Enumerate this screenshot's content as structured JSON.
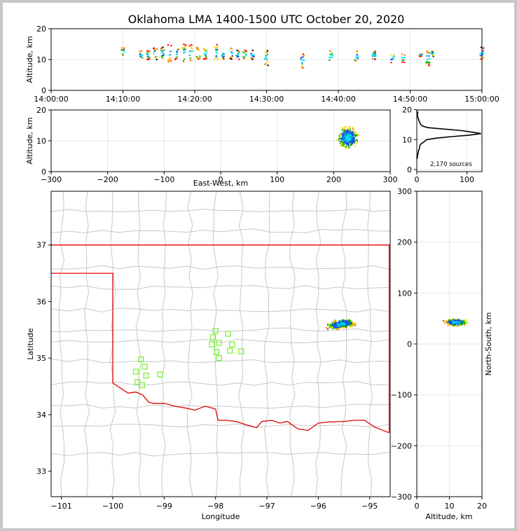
{
  "chart_data": [
    {
      "id": "time_height",
      "type": "scatter",
      "title": "Oklahoma LMA 1400-1500 UTC October 20, 2020",
      "xlabel": "",
      "ylabel": "Altitude, km",
      "xlim": [
        "14:00:00",
        "15:00:00"
      ],
      "ylim": [
        0,
        20
      ],
      "x_ticks": [
        "14:00:00",
        "14:10:00",
        "14:20:00",
        "14:30:00",
        "14:40:00",
        "14:50:00",
        "15:00:00"
      ],
      "y_ticks": [
        0,
        10,
        20
      ],
      "grid": true,
      "source_clusters": [
        {
          "time": "14:10:00",
          "alt_low": 11,
          "alt_high": 14
        },
        {
          "time": "14:12:30",
          "alt_low": 10,
          "alt_high": 13
        },
        {
          "time": "14:13:30",
          "alt_low": 10,
          "alt_high": 13
        },
        {
          "time": "14:14:30",
          "alt_low": 10,
          "alt_high": 14
        },
        {
          "time": "14:15:30",
          "alt_low": 10,
          "alt_high": 14
        },
        {
          "time": "14:16:30",
          "alt_low": 9,
          "alt_high": 15
        },
        {
          "time": "14:17:30",
          "alt_low": 10,
          "alt_high": 14
        },
        {
          "time": "14:18:30",
          "alt_low": 9,
          "alt_high": 15
        },
        {
          "time": "14:19:30",
          "alt_low": 9,
          "alt_high": 15
        },
        {
          "time": "14:20:30",
          "alt_low": 10,
          "alt_high": 14
        },
        {
          "time": "14:21:30",
          "alt_low": 10,
          "alt_high": 14
        },
        {
          "time": "14:23:00",
          "alt_low": 9,
          "alt_high": 15
        },
        {
          "time": "14:24:00",
          "alt_low": 10,
          "alt_high": 13
        },
        {
          "time": "14:25:00",
          "alt_low": 10,
          "alt_high": 14
        },
        {
          "time": "14:26:00",
          "alt_low": 10,
          "alt_high": 13
        },
        {
          "time": "14:27:00",
          "alt_low": 10,
          "alt_high": 13
        },
        {
          "time": "14:28:00",
          "alt_low": 10,
          "alt_high": 13
        },
        {
          "time": "14:30:00",
          "alt_low": 8,
          "alt_high": 13
        },
        {
          "time": "14:35:00",
          "alt_low": 7,
          "alt_high": 12
        },
        {
          "time": "14:39:00",
          "alt_low": 9,
          "alt_high": 13
        },
        {
          "time": "14:42:30",
          "alt_low": 9,
          "alt_high": 13
        },
        {
          "time": "14:45:00",
          "alt_low": 10,
          "alt_high": 13
        },
        {
          "time": "14:47:30",
          "alt_low": 9,
          "alt_high": 12
        },
        {
          "time": "14:49:00",
          "alt_low": 9,
          "alt_high": 12
        },
        {
          "time": "14:51:30",
          "alt_low": 11,
          "alt_high": 12
        },
        {
          "time": "14:52:30",
          "alt_low": 8,
          "alt_high": 13
        },
        {
          "time": "14:53:00",
          "alt_low": 11,
          "alt_high": 13
        },
        {
          "time": "15:00:00",
          "alt_low": 10,
          "alt_high": 14
        }
      ]
    },
    {
      "id": "ew_altitude",
      "type": "scatter",
      "xlabel": "East-West, km",
      "ylabel": "Altitude, km",
      "xlim": [
        -300,
        300
      ],
      "ylim": [
        0,
        20
      ],
      "x_ticks": [
        -300,
        -200,
        -100,
        0,
        100,
        200,
        300
      ],
      "y_ticks": [
        0,
        10,
        20
      ],
      "grid": true,
      "source_region": {
        "x_center": 225,
        "x_spread": 18,
        "alt_center": 11,
        "alt_spread": 3
      }
    },
    {
      "id": "altitude_histogram",
      "type": "line",
      "xlim": [
        0,
        130
      ],
      "ylim": [
        0,
        20
      ],
      "x_ticks": [
        0,
        100
      ],
      "y_ticks": [
        0,
        10,
        20
      ],
      "grid": true,
      "annotation": "2,170 sources",
      "profile": [
        {
          "count": 0,
          "alt": 19.5
        },
        {
          "count": 2,
          "alt": 19
        },
        {
          "count": 1,
          "alt": 18
        },
        {
          "count": 3,
          "alt": 17
        },
        {
          "count": 5,
          "alt": 16
        },
        {
          "count": 8,
          "alt": 15
        },
        {
          "count": 12,
          "alt": 14.5
        },
        {
          "count": 22,
          "alt": 14
        },
        {
          "count": 55,
          "alt": 13.5
        },
        {
          "count": 90,
          "alt": 13
        },
        {
          "count": 110,
          "alt": 12.5
        },
        {
          "count": 128,
          "alt": 12
        },
        {
          "count": 105,
          "alt": 11.5
        },
        {
          "count": 70,
          "alt": 11
        },
        {
          "count": 40,
          "alt": 10.5
        },
        {
          "count": 20,
          "alt": 10
        },
        {
          "count": 12,
          "alt": 9
        },
        {
          "count": 8,
          "alt": 8.5
        },
        {
          "count": 6,
          "alt": 8
        },
        {
          "count": 5,
          "alt": 7
        },
        {
          "count": 3,
          "alt": 6
        },
        {
          "count": 2,
          "alt": 5
        },
        {
          "count": 1,
          "alt": 4
        },
        {
          "count": 0,
          "alt": 3.5
        }
      ]
    },
    {
      "id": "plan_view",
      "type": "scatter",
      "xlabel": "Longitude",
      "ylabel": "Latitude",
      "xlim": [
        -101.2,
        -94.6
      ],
      "ylim": [
        32.55,
        37.95
      ],
      "x_ticks": [
        -101,
        -100,
        -99,
        -98,
        -97,
        -96,
        -95
      ],
      "y_ticks": [
        33,
        34,
        35,
        36,
        37
      ],
      "source_region": {
        "lon_center": -95.55,
        "lat_center": 35.6,
        "lon_spread": 0.35,
        "lat_spread": 0.12
      },
      "stations": [
        {
          "lon": -99.45,
          "lat": 34.98
        },
        {
          "lon": -99.38,
          "lat": 34.85
        },
        {
          "lon": -99.55,
          "lat": 34.76
        },
        {
          "lon": -99.35,
          "lat": 34.69
        },
        {
          "lon": -99.52,
          "lat": 34.58
        },
        {
          "lon": -99.43,
          "lat": 34.52
        },
        {
          "lon": -99.08,
          "lat": 34.71
        },
        {
          "lon": -98.0,
          "lat": 35.48
        },
        {
          "lon": -98.05,
          "lat": 35.37
        },
        {
          "lon": -98.07,
          "lat": 35.24
        },
        {
          "lon": -97.93,
          "lat": 35.27
        },
        {
          "lon": -97.98,
          "lat": 35.11
        },
        {
          "lon": -97.93,
          "lat": 35.0
        },
        {
          "lon": -97.76,
          "lat": 35.43
        },
        {
          "lon": -97.68,
          "lat": 35.24
        },
        {
          "lon": -97.72,
          "lat": 35.13
        },
        {
          "lon": -97.5,
          "lat": 35.12
        }
      ]
    },
    {
      "id": "altitude_ns",
      "type": "scatter",
      "xlabel": "Altitude, km",
      "ylabel": "North-South, km",
      "xlim": [
        0,
        20
      ],
      "ylim": [
        -300,
        300
      ],
      "x_ticks": [
        0,
        10,
        20
      ],
      "y_ticks": [
        -300,
        -200,
        -100,
        0,
        100,
        200,
        300
      ],
      "source_region": {
        "alt_center": 12,
        "alt_spread": 3,
        "ns_center": 42,
        "ns_spread": 8
      }
    }
  ],
  "colors": {
    "state_border": "#e00000",
    "county_lines": "#c8c8c8",
    "station": "#7cf03a",
    "histogram": "#000000",
    "grid": "#e6e6e6",
    "source_palette": [
      "#00e5ff",
      "#00b4c8",
      "#2040ff",
      "#00c000",
      "#ffd000",
      "#ff7a00",
      "#ff0000",
      "#000000"
    ]
  }
}
